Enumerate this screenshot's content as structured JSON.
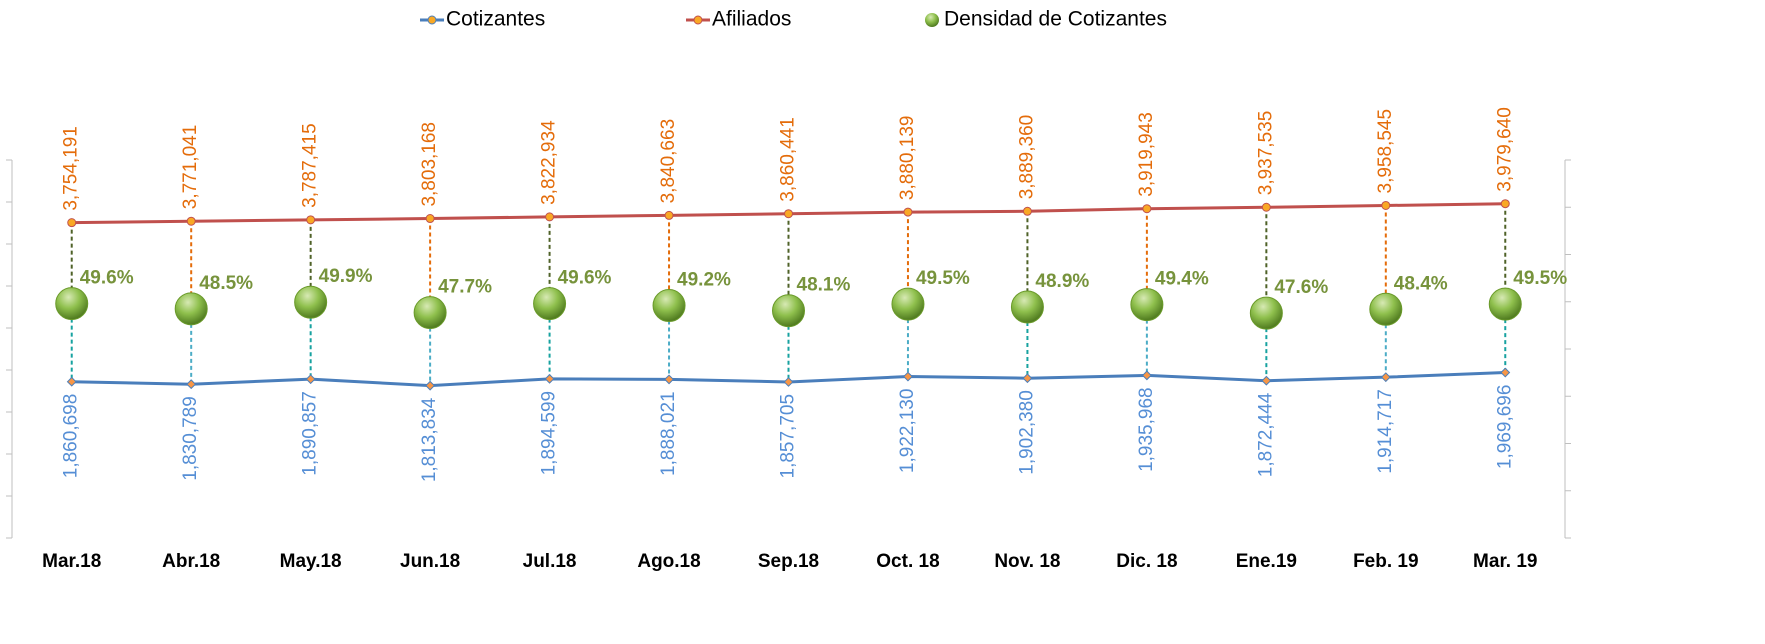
{
  "chart_data": {
    "type": "line",
    "categories": [
      "Mar.18",
      "Abr.18",
      "May.18",
      "Jun.18",
      "Jul.18",
      "Ago.18",
      "Sep.18",
      "Oct. 18",
      "Nov. 18",
      "Dic. 18",
      "Ene.19",
      "Feb. 19",
      "Mar. 19"
    ],
    "series": [
      {
        "name": "Cotizantes",
        "color": "#4a7ebb",
        "label_color": "#558ed5",
        "values": [
          1860698,
          1830789,
          1890857,
          1813834,
          1894599,
          1888021,
          1857705,
          1922130,
          1902380,
          1935968,
          1872444,
          1914717,
          1969696
        ],
        "value_labels": [
          "1,860,698",
          "1,830,789",
          "1,890,857",
          "1,813,834",
          "1,894,599",
          "1,888,021",
          "1,857,705",
          "1,922,130",
          "1,902,380",
          "1,935,968",
          "1,872,444",
          "1,914,717",
          "1,969,696"
        ]
      },
      {
        "name": "Afiliados",
        "color": "#c0504d",
        "label_color": "#e46c0a",
        "values": [
          3754191,
          3771041,
          3787415,
          3803168,
          3822934,
          3840663,
          3860441,
          3880139,
          3889360,
          3919943,
          3937535,
          3958545,
          3979640
        ],
        "value_labels": [
          "3,754,191",
          "3,771,041",
          "3,787,415",
          "3,803,168",
          "3,822,934",
          "3,840,663",
          "3,860,441",
          "3,880,139",
          "3,889,360",
          "3,919,943",
          "3,937,535",
          "3,958,545",
          "3,979,640"
        ]
      },
      {
        "name": "Densidad de Cotizantes",
        "color": "#77933c",
        "axis": "y2",
        "marker": "bubble",
        "values": [
          49.6,
          48.5,
          49.9,
          47.7,
          49.6,
          49.2,
          48.1,
          49.5,
          48.9,
          49.4,
          47.6,
          48.4,
          49.5
        ],
        "value_labels": [
          "49.6%",
          "48.5%",
          "49.9%",
          "47.7%",
          "49.6%",
          "49.2%",
          "48.1%",
          "49.5%",
          "48.9%",
          "49.4%",
          "47.6%",
          "48.4%",
          "49.5%"
        ]
      }
    ],
    "ylim": [
      0,
      4500000
    ],
    "yticks": [
      0,
      500000,
      1000000,
      1500000,
      2000000,
      2500000,
      3000000,
      3500000,
      4000000,
      4500000
    ],
    "y2lim": [
      0,
      80
    ],
    "y2ticks": [
      0,
      10,
      20,
      30,
      40,
      50,
      60,
      70,
      80
    ],
    "legend": "top"
  }
}
